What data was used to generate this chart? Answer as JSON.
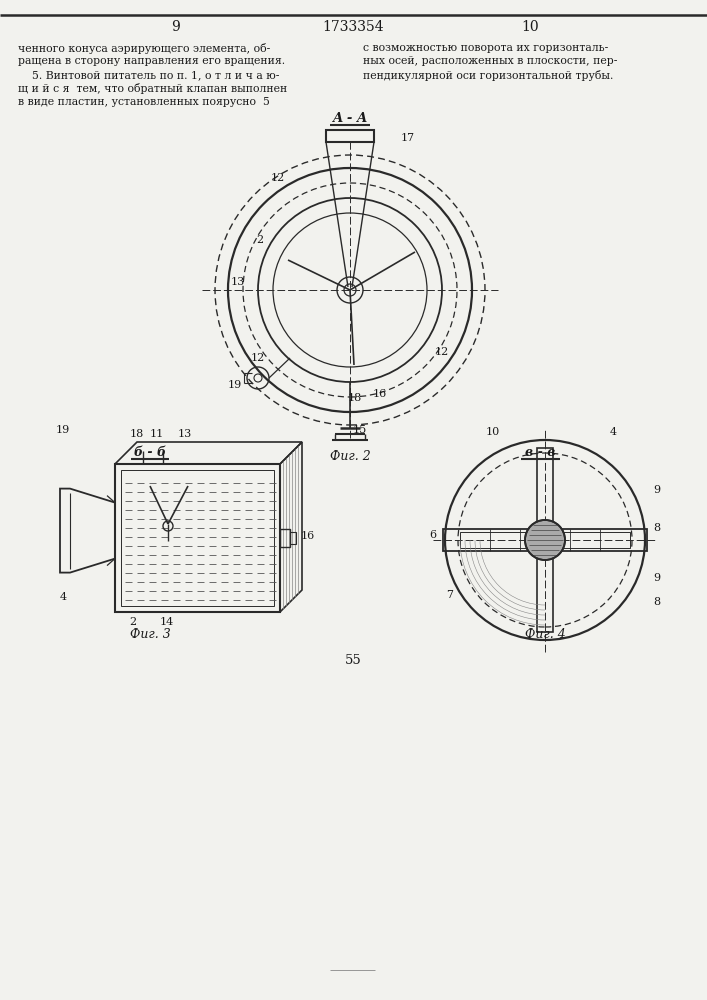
{
  "bg_color": "#f2f2ee",
  "line_color": "#1a1a1a",
  "page_num_left": "9",
  "page_num_center": "1733354",
  "page_num_right": "10",
  "fig2_label": "Фиг. 2",
  "fig3_label": "Фиг. 3",
  "fig4_label": "Фиг. 4",
  "section_aa": "A - A",
  "section_bb": "б - б",
  "section_vv": "в - в",
  "page_bottom": "55",
  "text_left_lines": [
    "ченного конуса аэрирующего элемента, об-",
    "ращена в сторону направления его вращения.",
    "    5. Винтовой питатель по п. 1, о т л и ч а ю-",
    "щ и й с я  тем, что обратный клапан выполнен",
    "в виде пластин, установленных поярусно  5"
  ],
  "text_right_lines": [
    "с возможностью поворота их горизонталь-",
    "ных осей, расположенных в плоскости, пер-",
    "пендикулярной оси горизонтальной трубы."
  ]
}
